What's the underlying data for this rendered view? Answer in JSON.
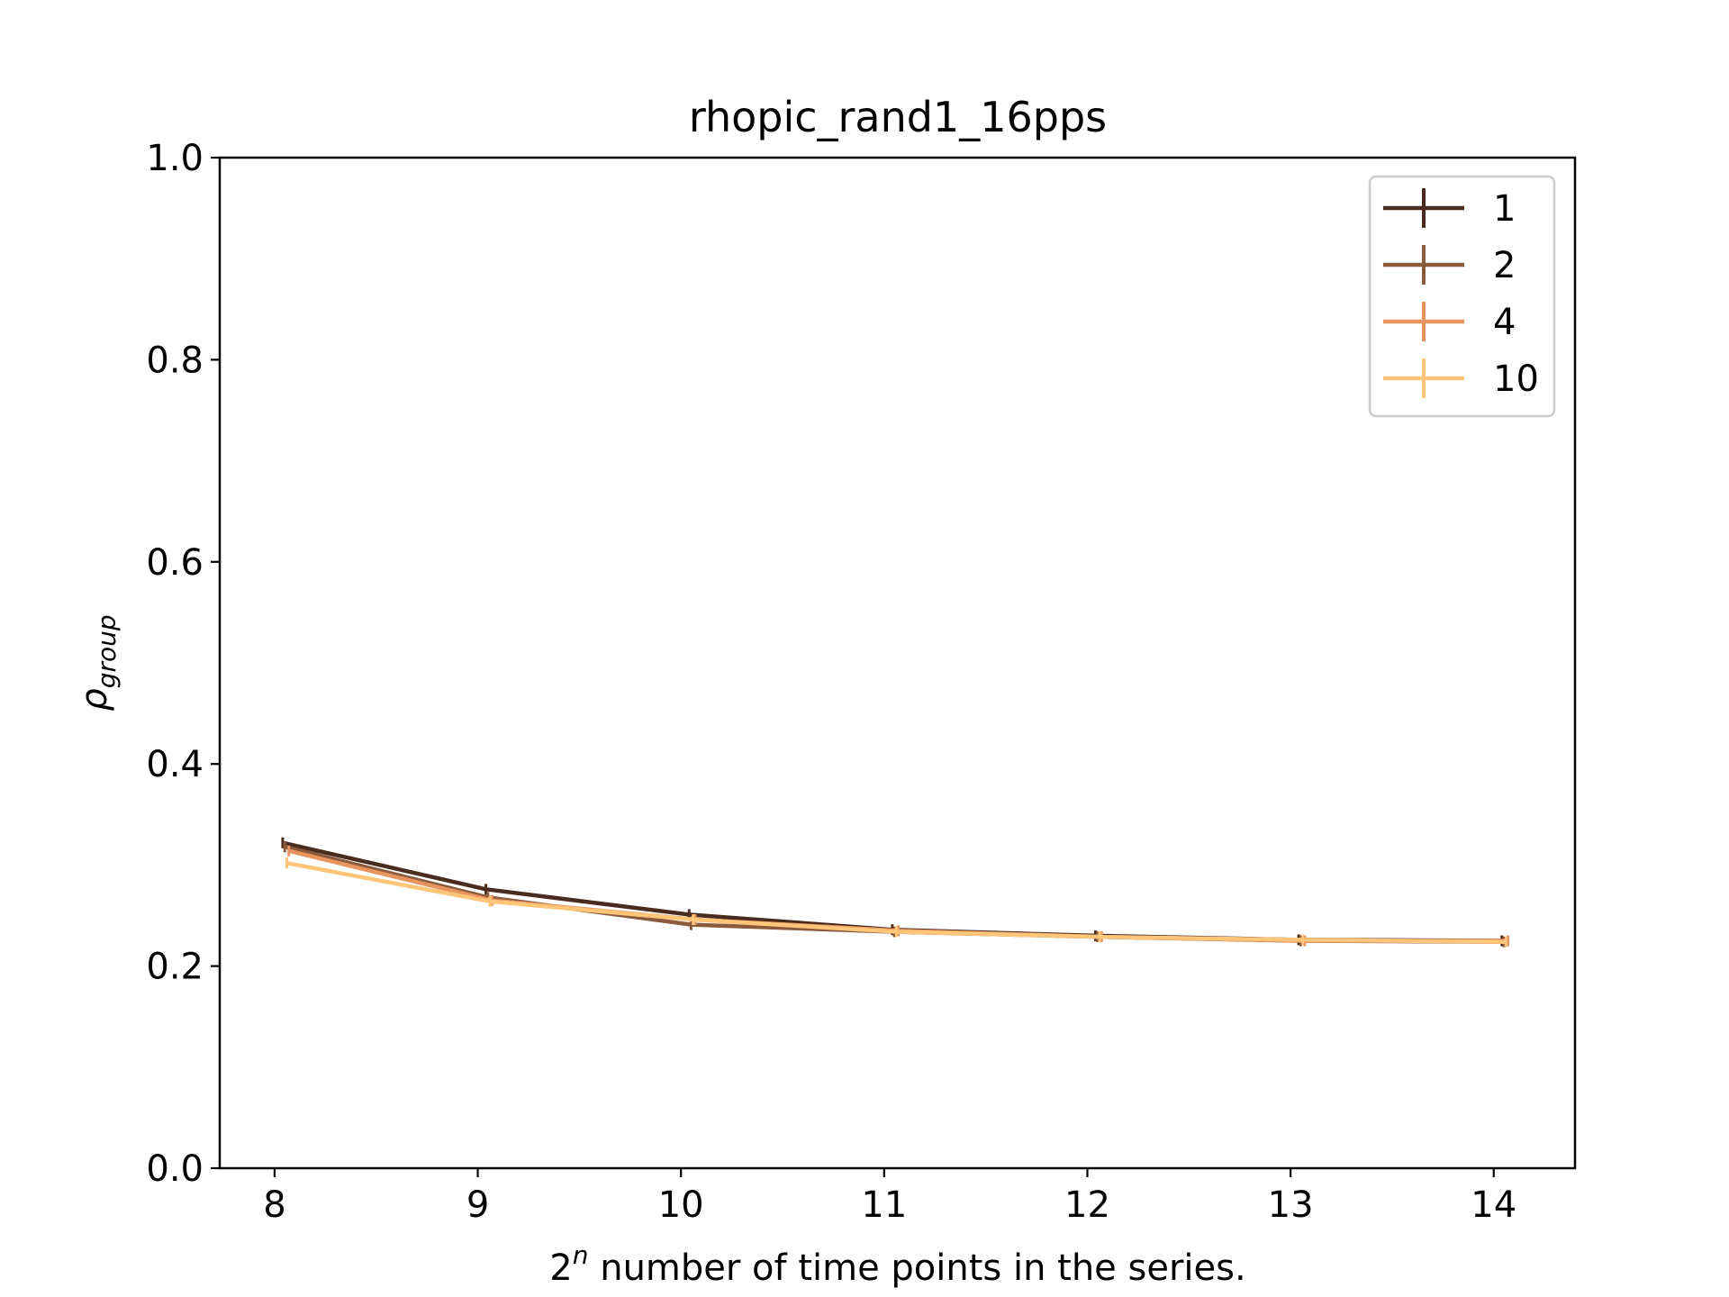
{
  "chart_data": {
    "type": "line",
    "title": "rhopic_rand1_16pps",
    "xlabel": {
      "base": "2",
      "sup": "n",
      "rest": " number of time points in the series."
    },
    "ylabel": {
      "symbol": "ρ",
      "sub": "group"
    },
    "xlim": [
      7.73,
      14.4
    ],
    "ylim": [
      0.0,
      1.0
    ],
    "xticks": [
      "8",
      "9",
      "10",
      "11",
      "12",
      "13",
      "14"
    ],
    "xtick_values": [
      8,
      9,
      10,
      11,
      12,
      13,
      14
    ],
    "yticks": [
      "0.0",
      "0.2",
      "0.4",
      "0.6",
      "0.8",
      "1.0"
    ],
    "ytick_values": [
      0.0,
      0.2,
      0.4,
      0.6,
      0.8,
      1.0
    ],
    "grid": false,
    "legend_position": "top-right",
    "series": [
      {
        "name": "1",
        "color": "#4a2c1f",
        "x": [
          8.04,
          9.04,
          10.04,
          11.04,
          12.04,
          13.04,
          14.04
        ],
        "y": [
          0.322,
          0.276,
          0.251,
          0.236,
          0.23,
          0.226,
          0.225
        ]
      },
      {
        "name": "2",
        "color": "#8b5a3c",
        "x": [
          8.05,
          9.05,
          10.05,
          11.05,
          12.05,
          13.05,
          14.05
        ],
        "y": [
          0.318,
          0.268,
          0.241,
          0.234,
          0.229,
          0.225,
          0.224
        ]
      },
      {
        "name": "4",
        "color": "#e8945e",
        "x": [
          8.07,
          9.07,
          10.07,
          11.07,
          12.07,
          13.07,
          14.07
        ],
        "y": [
          0.314,
          0.265,
          0.246,
          0.235,
          0.229,
          0.225,
          0.225
        ]
      },
      {
        "name": "10",
        "color": "#ffc578",
        "x": [
          8.06,
          9.06,
          10.06,
          11.06,
          12.06,
          13.06,
          14.06
        ],
        "y": [
          0.302,
          0.264,
          0.246,
          0.234,
          0.229,
          0.226,
          0.224
        ]
      }
    ]
  }
}
